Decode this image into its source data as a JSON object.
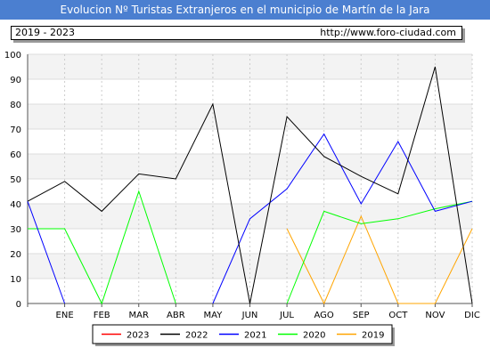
{
  "title": "Evolucion Nº Turistas Extranjeros en el municipio de Martín de la Jara",
  "info": {
    "years": "2019 - 2023",
    "url": "http://www.foro-ciudad.com"
  },
  "chart_data": {
    "type": "line",
    "title": "Evolucion Nº Turistas Extranjeros en el municipio de Martín de la Jara",
    "categories": [
      "",
      "ENE",
      "FEB",
      "MAR",
      "ABR",
      "MAY",
      "JUN",
      "JUL",
      "AGO",
      "SEP",
      "OCT",
      "NOV",
      "DIC"
    ],
    "ylim": [
      0,
      100
    ],
    "yticks": [
      0,
      10,
      20,
      30,
      40,
      50,
      60,
      70,
      80,
      90,
      100
    ],
    "grid": true,
    "legend_position": "bottom",
    "series": [
      {
        "name": "2023",
        "color": "#ff0000",
        "values": [
          null,
          null,
          null,
          null,
          null,
          null,
          null,
          null,
          null,
          null,
          null,
          null,
          null
        ]
      },
      {
        "name": "2022",
        "color": "#000000",
        "values": [
          41,
          49,
          37,
          52,
          50,
          80,
          0,
          75,
          59,
          51,
          44,
          95,
          0
        ]
      },
      {
        "name": "2021",
        "color": "#0000ff",
        "values": [
          41,
          0,
          null,
          null,
          null,
          0,
          34,
          46,
          68,
          40,
          65,
          37,
          41
        ]
      },
      {
        "name": "2020",
        "color": "#00ff00",
        "values": [
          30,
          30,
          0,
          45,
          0,
          null,
          null,
          0,
          37,
          32,
          34,
          38,
          41
        ]
      },
      {
        "name": "2019",
        "color": "#ffa500",
        "values": [
          null,
          null,
          null,
          null,
          null,
          null,
          null,
          30,
          0,
          35,
          0,
          0,
          30
        ]
      }
    ]
  }
}
